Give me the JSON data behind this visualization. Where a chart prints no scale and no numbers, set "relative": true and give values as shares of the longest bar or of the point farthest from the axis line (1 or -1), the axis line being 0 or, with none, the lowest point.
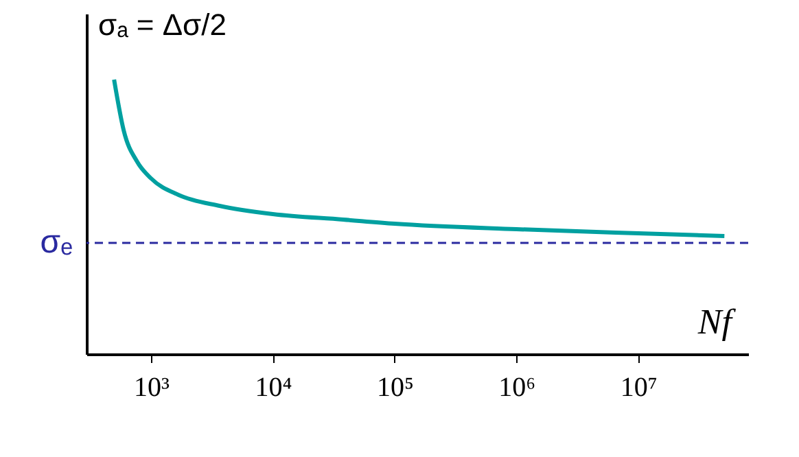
{
  "chart_data": {
    "type": "line",
    "relative": true,
    "ylabel": "σₐ = Δσ/2",
    "xlabel": "Nf",
    "log": "x",
    "x": [
      497,
      596,
      771,
      1000,
      1679,
      3656,
      10000,
      37760,
      100000,
      1000000,
      10000000,
      51000000
    ],
    "series": [
      {
        "color": "#00a0a0",
        "values": [
          1,
          0.815,
          0.7,
          0.64,
          0.58,
          0.54,
          0.51,
          0.49,
          0.475,
          0.455,
          0.44,
          0.43
        ]
      }
    ],
    "xlim": [
      295,
      80000000
    ],
    "xticks": [
      {
        "value": 1000,
        "label": "10³"
      },
      {
        "value": 10000,
        "label": "10⁴"
      },
      {
        "value": 100000,
        "label": "10⁵"
      },
      {
        "value": 1000000,
        "label": "10⁶"
      },
      {
        "value": 10000000,
        "label": "10⁷"
      }
    ],
    "ref_lines": [
      {
        "axis": "y",
        "value": 0.405,
        "label": "σₑ",
        "color": "#2a2aa0",
        "line_style": "dashed"
      }
    ],
    "tick_labels": "x",
    "grid": false,
    "marker": "none",
    "line_style": "solid"
  }
}
